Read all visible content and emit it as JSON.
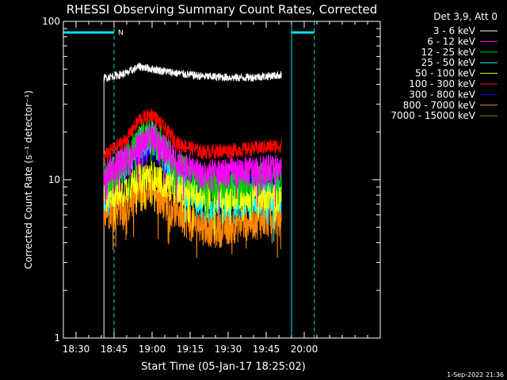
{
  "chart_data": {
    "type": "line",
    "title": "RHESSI Observing Summary Count Rates, Corrected",
    "xlabel": "Start Time (05-Jan-17 18:25:02)",
    "ylabel": "Corrected Count Rate (s⁻¹ detector⁻¹)",
    "yscale": "log",
    "ylim": [
      1,
      100
    ],
    "y_ticks": [
      {
        "v": 1,
        "label": "1"
      },
      {
        "v": 10,
        "label": "10"
      },
      {
        "v": 100,
        "label": "100"
      }
    ],
    "x_range_minutes": [
      -30,
      95
    ],
    "x_ticks": [
      {
        "t": -25,
        "label": "18:30"
      },
      {
        "t": -10,
        "label": "18:45"
      },
      {
        "t": 5,
        "label": "19:00"
      },
      {
        "t": 20,
        "label": "19:15"
      },
      {
        "t": 35,
        "label": "19:30"
      },
      {
        "t": 50,
        "label": "19:45"
      },
      {
        "t": 65,
        "label": "20:00"
      }
    ],
    "legend_title": "Det 3,9, Att 0",
    "legend_position": "right",
    "timestamp": "1-Sep-2022 21:36",
    "night_markers": {
      "label": "N",
      "color": "#00e5ee",
      "spans": [
        [
          -30,
          -10
        ],
        [
          60,
          69
        ]
      ],
      "solid_lines": [
        -30,
        60
      ],
      "dashed_lines": [
        -10,
        69
      ]
    },
    "data_interval_minutes": [
      -14,
      56
    ],
    "series": [
      {
        "name": "3 - 6 keV",
        "color": "#000000",
        "line_color": "#000000",
        "base": [
          [
            -14,
            44
          ],
          [
            -5,
            47
          ],
          [
            0,
            52
          ],
          [
            5,
            50
          ],
          [
            15,
            47
          ],
          [
            25,
            45
          ],
          [
            40,
            44
          ],
          [
            50,
            45
          ],
          [
            56,
            46
          ]
        ],
        "noise": 0.04
      },
      {
        "name": "6 - 12 keV",
        "color": "#ff00ff",
        "base": [
          [
            -14,
            11
          ],
          [
            -5,
            14
          ],
          [
            0,
            17
          ],
          [
            5,
            19
          ],
          [
            10,
            16
          ],
          [
            15,
            13
          ],
          [
            25,
            11
          ],
          [
            40,
            11.5
          ],
          [
            56,
            12
          ]
        ],
        "noise": 0.12
      },
      {
        "name": "12 - 25 keV",
        "color": "#00cc00",
        "base": [
          [
            -14,
            10
          ],
          [
            -5,
            14
          ],
          [
            0,
            18
          ],
          [
            5,
            20
          ],
          [
            10,
            16
          ],
          [
            15,
            12
          ],
          [
            25,
            10
          ],
          [
            40,
            10
          ],
          [
            56,
            11
          ]
        ],
        "noise": 0.14
      },
      {
        "name": "25 - 50 keV",
        "color": "#00ffff",
        "base": [
          [
            -14,
            7.5
          ],
          [
            -5,
            13
          ],
          [
            0,
            17
          ],
          [
            5,
            19
          ],
          [
            10,
            14
          ],
          [
            15,
            10
          ],
          [
            25,
            7.5
          ],
          [
            40,
            7.5
          ],
          [
            56,
            8
          ]
        ],
        "noise": 0.14
      },
      {
        "name": "50 - 100 keV",
        "color": "#ffff00",
        "base": [
          [
            -14,
            8
          ],
          [
            -5,
            9
          ],
          [
            0,
            10.5
          ],
          [
            5,
            11
          ],
          [
            10,
            9.5
          ],
          [
            20,
            8.5
          ],
          [
            40,
            8
          ],
          [
            56,
            8
          ]
        ],
        "noise": 0.12
      },
      {
        "name": "100 - 300 keV",
        "color": "#ff0000",
        "base": [
          [
            -14,
            14
          ],
          [
            -5,
            18
          ],
          [
            0,
            24
          ],
          [
            5,
            26
          ],
          [
            10,
            21
          ],
          [
            15,
            17
          ],
          [
            25,
            15
          ],
          [
            40,
            15.5
          ],
          [
            56,
            16.5
          ]
        ],
        "noise": 0.06
      },
      {
        "name": "300 - 800 keV",
        "color": "#0000ff",
        "base": [
          [
            -14,
            10
          ],
          [
            -5,
            12.5
          ],
          [
            0,
            14.5
          ],
          [
            5,
            16
          ],
          [
            10,
            13
          ],
          [
            15,
            10.5
          ],
          [
            25,
            9.5
          ],
          [
            40,
            9.5
          ],
          [
            56,
            10
          ]
        ],
        "noise": 0.1
      },
      {
        "name": "800 - 7000 keV",
        "color": "#ff8800",
        "base": [
          [
            -14,
            6.5
          ],
          [
            -5,
            7
          ],
          [
            0,
            8.5
          ],
          [
            5,
            9
          ],
          [
            10,
            7.5
          ],
          [
            20,
            5.5
          ],
          [
            30,
            5
          ],
          [
            40,
            5.5
          ],
          [
            56,
            6
          ]
        ],
        "noise": 0.15
      },
      {
        "name": "7000 - 15000 keV",
        "color": "#888800",
        "base": [
          [
            -14,
            6
          ],
          [
            -5,
            6.5
          ],
          [
            0,
            7
          ],
          [
            5,
            7.5
          ],
          [
            15,
            6
          ],
          [
            30,
            5.5
          ],
          [
            56,
            6
          ]
        ],
        "noise": 0.1
      }
    ]
  }
}
